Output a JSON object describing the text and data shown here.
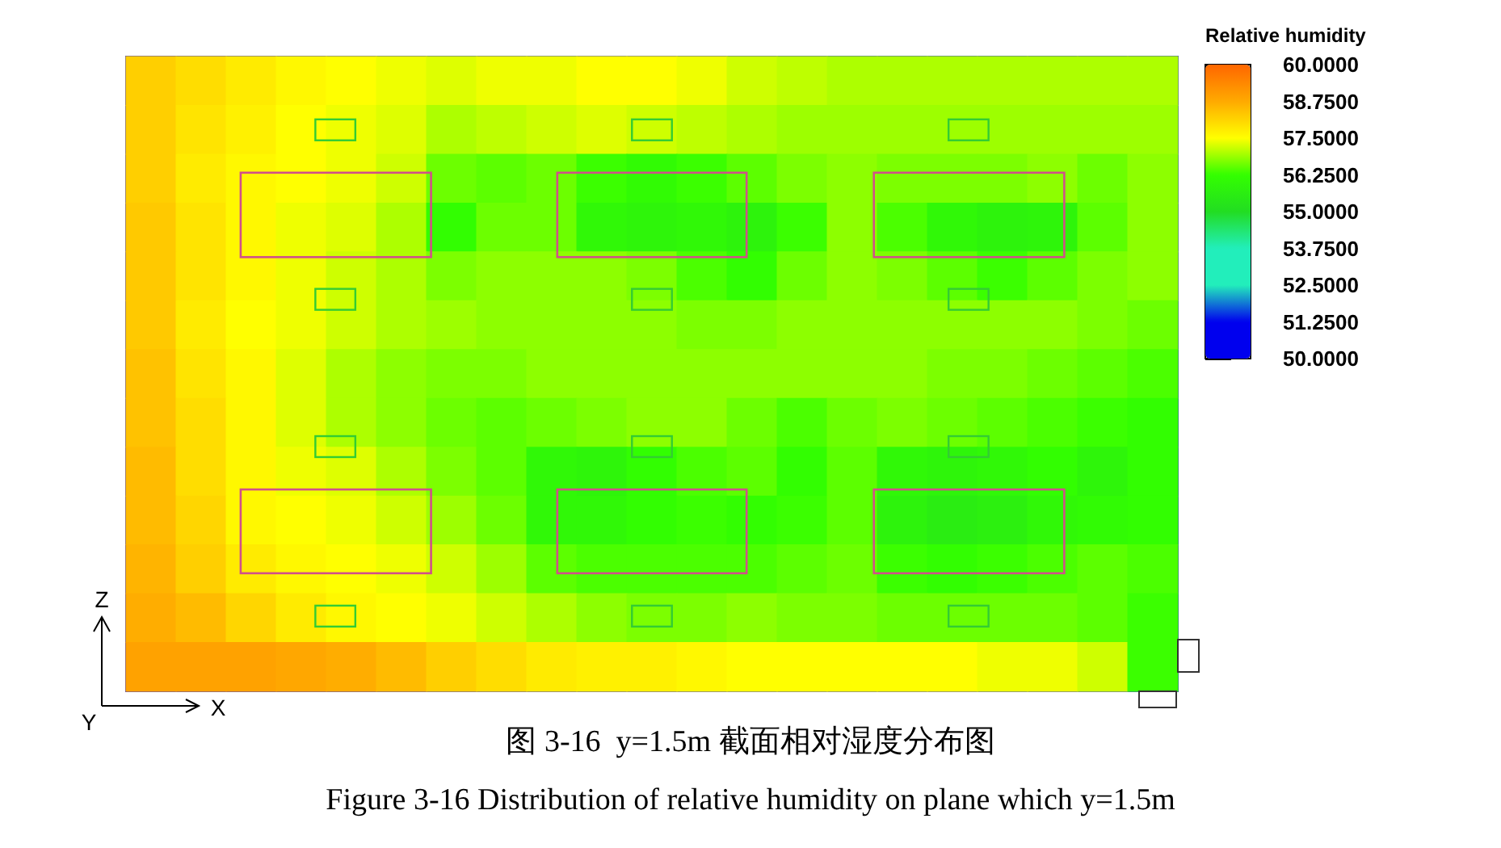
{
  "chart_data": {
    "type": "heatmap",
    "title": "图 3-16  y=1.5m 截面相对湿度分布图",
    "subtitle": "Figure 3-16 Distribution of relative humidity on plane which y=1.5m",
    "xlabel": "X",
    "ylabel": "Z",
    "clabel": "Relative humidity",
    "annotations": [
      "Y"
    ],
    "categories": [
      null,
      null,
      null,
      null,
      null,
      null,
      null,
      null,
      null,
      null,
      null,
      null,
      null,
      null,
      null,
      null,
      null,
      null,
      null,
      null,
      null
    ],
    "y_categories": [
      null,
      null,
      null,
      null,
      null,
      null,
      null,
      null,
      null,
      null,
      null,
      null,
      null
    ],
    "cells": [
      [
        58.2,
        58.0,
        57.8,
        57.6,
        57.5,
        57.4,
        57.3,
        57.4,
        57.4,
        57.5,
        57.5,
        57.4,
        57.2,
        57.1,
        57.0,
        57.0,
        57.0,
        57.0,
        57.0,
        57.0,
        57.0
      ],
      [
        58.2,
        57.9,
        57.7,
        57.5,
        57.4,
        57.3,
        57.0,
        57.1,
        57.2,
        57.3,
        57.2,
        57.1,
        57.0,
        56.9,
        56.9,
        56.9,
        56.9,
        56.9,
        56.9,
        56.9,
        56.9
      ],
      [
        58.2,
        57.8,
        57.6,
        57.5,
        57.4,
        57.2,
        56.6,
        56.5,
        56.6,
        56.3,
        56.1,
        56.3,
        56.5,
        56.7,
        56.8,
        56.7,
        56.7,
        56.7,
        56.8,
        56.6,
        56.8
      ],
      [
        58.3,
        57.9,
        57.6,
        57.4,
        57.3,
        57.0,
        56.2,
        56.6,
        56.6,
        56.0,
        55.9,
        56.0,
        55.8,
        56.3,
        56.8,
        56.4,
        56.0,
        55.8,
        55.9,
        56.5,
        56.8
      ],
      [
        58.3,
        57.9,
        57.6,
        57.4,
        57.2,
        57.0,
        56.7,
        56.8,
        56.8,
        56.8,
        56.7,
        56.4,
        56.2,
        56.6,
        56.8,
        56.7,
        56.5,
        56.3,
        56.5,
        56.7,
        56.8
      ],
      [
        58.3,
        57.8,
        57.5,
        57.4,
        57.2,
        57.0,
        56.9,
        56.8,
        56.8,
        56.8,
        56.8,
        56.7,
        56.7,
        56.8,
        56.8,
        56.8,
        56.8,
        56.8,
        56.8,
        56.7,
        56.6
      ],
      [
        58.4,
        57.9,
        57.6,
        57.3,
        57.0,
        56.8,
        56.7,
        56.7,
        56.8,
        56.8,
        56.8,
        56.8,
        56.8,
        56.8,
        56.8,
        56.8,
        56.7,
        56.7,
        56.6,
        56.5,
        56.4
      ],
      [
        58.4,
        58.0,
        57.6,
        57.3,
        57.0,
        56.8,
        56.6,
        56.5,
        56.6,
        56.7,
        56.8,
        56.8,
        56.6,
        56.4,
        56.6,
        56.7,
        56.6,
        56.5,
        56.4,
        56.3,
        56.2
      ],
      [
        58.5,
        58.0,
        57.6,
        57.4,
        57.3,
        57.0,
        56.7,
        56.5,
        56.0,
        55.9,
        56.2,
        56.4,
        56.5,
        56.2,
        56.5,
        56.0,
        55.9,
        56.0,
        56.2,
        55.9,
        56.2
      ],
      [
        58.5,
        58.1,
        57.6,
        57.5,
        57.4,
        57.2,
        56.9,
        56.6,
        56.0,
        56.0,
        56.2,
        56.3,
        56.2,
        56.3,
        56.5,
        55.8,
        55.6,
        55.7,
        56.0,
        56.1,
        56.2
      ],
      [
        58.6,
        58.2,
        57.8,
        57.6,
        57.5,
        57.4,
        57.2,
        56.9,
        56.5,
        56.4,
        56.4,
        56.4,
        56.4,
        56.5,
        56.6,
        56.3,
        56.2,
        56.3,
        56.4,
        56.5,
        56.4
      ],
      [
        58.7,
        58.5,
        58.1,
        57.8,
        57.6,
        57.5,
        57.4,
        57.2,
        57.0,
        56.8,
        56.7,
        56.7,
        56.8,
        56.7,
        56.7,
        56.6,
        56.6,
        56.6,
        56.6,
        56.5,
        56.3
      ],
      [
        58.9,
        58.9,
        58.9,
        58.8,
        58.7,
        58.5,
        58.2,
        58.0,
        57.8,
        57.7,
        57.7,
        57.6,
        57.5,
        57.5,
        57.5,
        57.5,
        57.5,
        57.4,
        57.4,
        57.2,
        56.3
      ]
    ],
    "clim": [
      50,
      60
    ],
    "cticks": [
      {
        "value": 50,
        "label": "50.0000"
      },
      {
        "value": 51.25,
        "label": "51.2500"
      },
      {
        "value": 52.5,
        "label": "52.5000"
      },
      {
        "value": 53.75,
        "label": "53.7500"
      },
      {
        "value": 55,
        "label": "55.0000"
      },
      {
        "value": 56.25,
        "label": "56.2500"
      },
      {
        "value": 57.5,
        "label": "57.5000"
      },
      {
        "value": 58.75,
        "label": "58.7500"
      },
      {
        "value": 60,
        "label": "60.0000"
      }
    ]
  }
}
